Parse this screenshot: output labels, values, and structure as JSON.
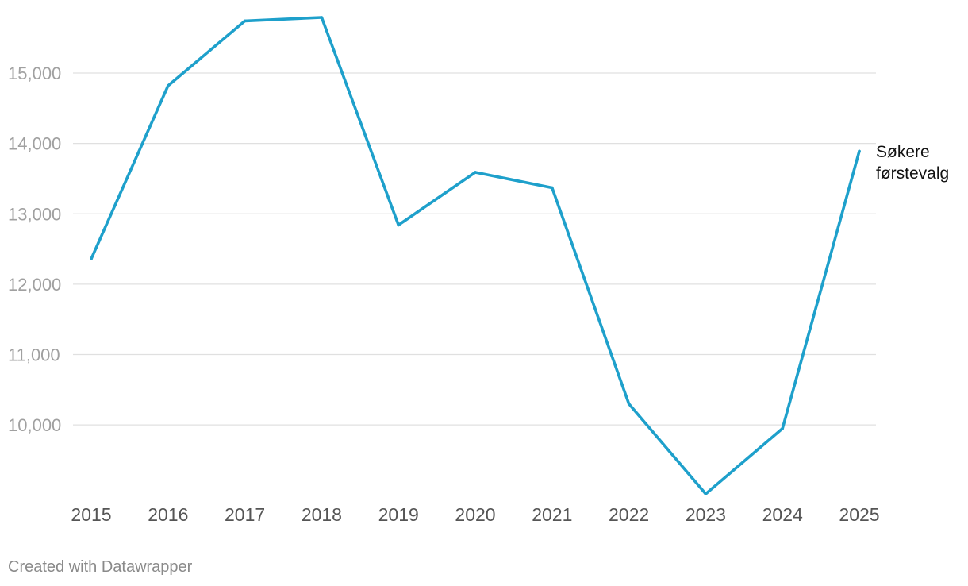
{
  "chart_data": {
    "type": "line",
    "x": [
      "2015",
      "2016",
      "2017",
      "2018",
      "2019",
      "2020",
      "2021",
      "2022",
      "2023",
      "2024",
      "2025"
    ],
    "series": [
      {
        "name": "Søkere førstevalg",
        "label_lines": [
          "Søkere",
          "førstevalg"
        ],
        "values": [
          12360,
          14820,
          15740,
          15790,
          12840,
          13590,
          13370,
          10300,
          9020,
          9950,
          13890
        ]
      }
    ],
    "y_ticks": [
      10000,
      11000,
      12000,
      13000,
      14000,
      15000
    ],
    "y_tick_labels": [
      "10,000",
      "11,000",
      "12,000",
      "13,000",
      "14,000",
      "15,000"
    ],
    "ylim": [
      9020,
      15790
    ],
    "grid": true,
    "legend": "direct label at line end",
    "line_color": "#1ea0cb"
  },
  "footer": {
    "credit": "Created with Datawrapper"
  }
}
